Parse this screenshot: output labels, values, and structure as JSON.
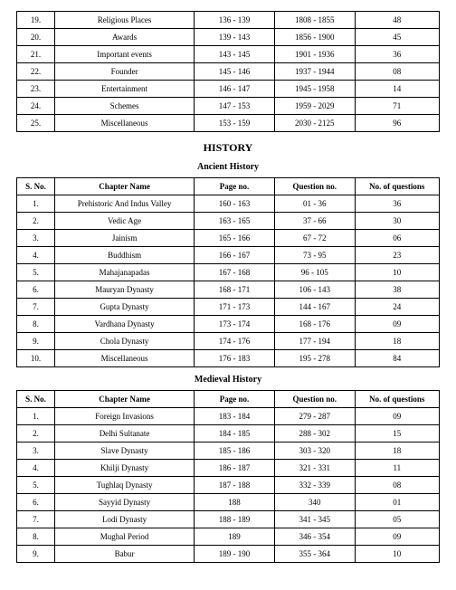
{
  "top_rows": [
    {
      "sno": "19.",
      "chapter": "Religious Places",
      "page": "136 - 139",
      "question": "1808 - 1855",
      "count": "48"
    },
    {
      "sno": "20.",
      "chapter": "Awards",
      "page": "139 - 143",
      "question": "1856 - 1900",
      "count": "45"
    },
    {
      "sno": "21.",
      "chapter": "Important events",
      "page": "143 - 145",
      "question": "1901 - 1936",
      "count": "36"
    },
    {
      "sno": "22.",
      "chapter": "Founder",
      "page": "145 - 146",
      "question": "1937 - 1944",
      "count": "08"
    },
    {
      "sno": "23.",
      "chapter": "Entertainment",
      "page": "146 - 147",
      "question": "1945 - 1958",
      "count": "14"
    },
    {
      "sno": "24.",
      "chapter": "Schemes",
      "page": "147 - 153",
      "question": "1959 - 2029",
      "count": "71"
    },
    {
      "sno": "25.",
      "chapter": "Miscellaneous",
      "page": "153 - 159",
      "question": "2030 - 2125",
      "count": "96"
    }
  ],
  "section_title": "HISTORY",
  "ancient_title": "Ancient History",
  "headers": {
    "sno": "S. No.",
    "chapter": "Chapter  Name",
    "page": "Page no.",
    "question": "Question no.",
    "count": "No. of questions"
  },
  "ancient_rows": [
    {
      "sno": "1.",
      "chapter": "Prehistoric And Indus Valley",
      "page": "160 - 163",
      "question": "01 - 36",
      "count": "36"
    },
    {
      "sno": "2.",
      "chapter": "Vedic Age",
      "page": "163 - 165",
      "question": "37 - 66",
      "count": "30"
    },
    {
      "sno": "3.",
      "chapter": "Jainism",
      "page": "165 - 166",
      "question": "67 - 72",
      "count": "06"
    },
    {
      "sno": "4.",
      "chapter": "Buddhism",
      "page": "166 - 167",
      "question": "73 - 95",
      "count": "23"
    },
    {
      "sno": "5.",
      "chapter": "Mahajanapadas",
      "page": "167 - 168",
      "question": "96 - 105",
      "count": "10"
    },
    {
      "sno": "6.",
      "chapter": "Mauryan Dynasty",
      "page": "168 - 171",
      "question": "106 - 143",
      "count": "38"
    },
    {
      "sno": "7.",
      "chapter": "Gupta Dynasty",
      "page": "171 - 173",
      "question": "144 - 167",
      "count": "24"
    },
    {
      "sno": "8.",
      "chapter": "Vardhana Dynasty",
      "page": "173 - 174",
      "question": "168 - 176",
      "count": "09"
    },
    {
      "sno": "9.",
      "chapter": "Chola Dynasty",
      "page": "174 - 176",
      "question": "177 - 194",
      "count": "18"
    },
    {
      "sno": "10.",
      "chapter": "Miscellaneous",
      "page": "176 - 183",
      "question": "195 - 278",
      "count": "84"
    }
  ],
  "medieval_title": "Medieval History",
  "medieval_rows": [
    {
      "sno": "1.",
      "chapter": "Foreign Invasions",
      "page": "183 - 184",
      "question": "279 - 287",
      "count": "09"
    },
    {
      "sno": "2.",
      "chapter": "Delhi Sultanate",
      "page": "184 - 185",
      "question": "288 - 302",
      "count": "15"
    },
    {
      "sno": "3.",
      "chapter": "Slave Dynasty",
      "page": "185 - 186",
      "question": "303 - 320",
      "count": "18"
    },
    {
      "sno": "4.",
      "chapter": "Khilji Dynasty",
      "page": "186 - 187",
      "question": "321 - 331",
      "count": "11"
    },
    {
      "sno": "5.",
      "chapter": "Tughlaq Dynasty",
      "page": "187 - 188",
      "question": "332 - 339",
      "count": "08"
    },
    {
      "sno": "6.",
      "chapter": "Sayyid Dynasty",
      "page": "188",
      "question": "340",
      "count": "01"
    },
    {
      "sno": "7.",
      "chapter": "Lodi Dynasty",
      "page": "188 - 189",
      "question": "341 - 345",
      "count": "05"
    },
    {
      "sno": "8.",
      "chapter": "Mughal Period",
      "page": "189",
      "question": "346 - 354",
      "count": "09"
    },
    {
      "sno": "9.",
      "chapter": "Babur",
      "page": "189 - 190",
      "question": "355 - 364",
      "count": "10"
    }
  ]
}
